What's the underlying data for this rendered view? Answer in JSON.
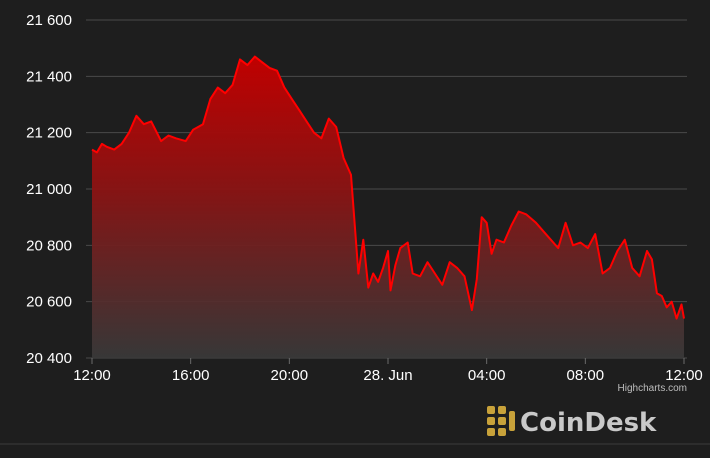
{
  "chart_data": {
    "type": "area",
    "title": "",
    "xlabel": "",
    "ylabel": "",
    "x_ticks": [
      "12:00",
      "16:00",
      "20:00",
      "28. Jun",
      "04:00",
      "08:00",
      "12:00"
    ],
    "x_tick_hours": [
      0,
      4,
      8,
      12,
      16,
      20,
      24
    ],
    "y_ticks": [
      20400,
      20600,
      20800,
      21000,
      21200,
      21400,
      21600
    ],
    "y_tick_labels": [
      "20 400",
      "20 600",
      "20 800",
      "21 000",
      "21 200",
      "21 400",
      "21 600"
    ],
    "ylim": [
      20400,
      21600
    ],
    "xlim_hours": [
      0,
      24
    ],
    "grid": true,
    "legend": "none",
    "series": [
      {
        "color": "#ff0000",
        "x_hours": [
          0,
          0.2,
          0.4,
          0.6,
          0.9,
          1.2,
          1.5,
          1.8,
          2.1,
          2.4,
          2.8,
          3.1,
          3.4,
          3.8,
          4.1,
          4.5,
          4.8,
          5.1,
          5.4,
          5.7,
          6.0,
          6.3,
          6.6,
          6.9,
          7.2,
          7.5,
          7.8,
          8.1,
          8.4,
          8.7,
          9.0,
          9.3,
          9.6,
          9.9,
          10.2,
          10.5,
          10.8,
          11.0,
          11.2,
          11.4,
          11.6,
          11.8,
          12.0,
          12.1,
          12.3,
          12.5,
          12.8,
          13.0,
          13.3,
          13.6,
          13.9,
          14.2,
          14.5,
          14.8,
          15.1,
          15.4,
          15.6,
          15.8,
          16.0,
          16.2,
          16.4,
          16.7,
          17.0,
          17.3,
          17.6,
          18.0,
          18.3,
          18.6,
          18.9,
          19.2,
          19.5,
          19.8,
          20.1,
          20.4,
          20.7,
          21.0,
          21.3,
          21.6,
          21.9,
          22.2,
          22.5,
          22.7,
          22.9,
          23.1,
          23.3,
          23.5,
          23.7,
          23.9,
          24.0
        ],
        "values": [
          21140,
          21130,
          21160,
          21150,
          21140,
          21160,
          21200,
          21260,
          21230,
          21240,
          21170,
          21190,
          21180,
          21170,
          21210,
          21230,
          21320,
          21360,
          21340,
          21370,
          21460,
          21440,
          21470,
          21450,
          21430,
          21420,
          21360,
          21320,
          21280,
          21240,
          21200,
          21180,
          21250,
          21220,
          21110,
          21050,
          20700,
          20820,
          20650,
          20700,
          20670,
          20720,
          20780,
          20640,
          20730,
          20790,
          20810,
          20700,
          20690,
          20740,
          20700,
          20660,
          20740,
          20720,
          20690,
          20570,
          20680,
          20900,
          20880,
          20770,
          20820,
          20810,
          20870,
          20920,
          20910,
          20880,
          20850,
          20820,
          20790,
          20880,
          20800,
          20810,
          20790,
          20840,
          20700,
          20720,
          20780,
          20820,
          20720,
          20690,
          20780,
          20750,
          20630,
          20620,
          20580,
          20600,
          20540,
          20590,
          20540
        ]
      }
    ]
  },
  "credit": "Highcharts.com",
  "brand": {
    "name": "CoinDesk",
    "logo_icon": "coindesk-logo-icon"
  }
}
